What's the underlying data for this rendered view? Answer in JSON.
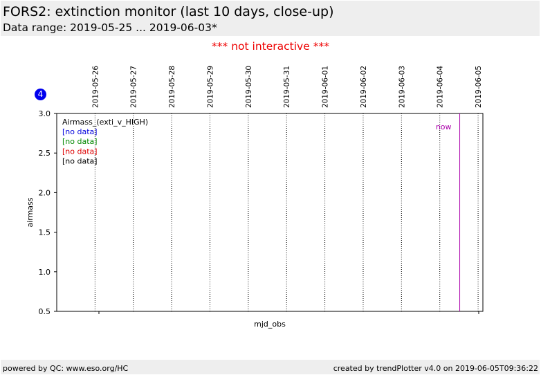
{
  "header": {
    "title": "FORS2: extinction monitor (last 10 days, close-up)",
    "subtitle": "Data range: 2019-05-25 ... 2019-06-03*"
  },
  "notice": "*** not interactive ***",
  "badge": "4",
  "footer": {
    "left": "powered by QC: www.eso.org/HC",
    "right": "created by trendPlotter v4.0 on 2019-06-05T09:36:22"
  },
  "chart_data": {
    "type": "line",
    "xlabel": "mjd_obs",
    "ylabel": "airmass",
    "ylim": [
      0.5,
      3.0
    ],
    "xlim": [
      "2019-05-25T00:00",
      "2019-06-05T03:00"
    ],
    "y_ticks": [
      "0.5",
      "1.0",
      "1.5",
      "2.0",
      "2.5",
      "3.0"
    ],
    "x_day_ticks": [
      "2019-05-26",
      "2019-05-27",
      "2019-05-28",
      "2019-05-29",
      "2019-05-30",
      "2019-05-31",
      "2019-06-01",
      "2019-06-02",
      "2019-06-03",
      "2019-06-04",
      "2019-06-05"
    ],
    "now": "2019-06-04T12:30",
    "now_label": "now",
    "now_color": "#aa00aa",
    "legend": {
      "placement": "top-left",
      "title": "Airmass_(exti_v_HIGH)",
      "entries": [
        {
          "text": "[no data]",
          "color": "#0000dd"
        },
        {
          "text": "[no data]",
          "color": "#008800"
        },
        {
          "text": "[no data]",
          "color": "#dd0000"
        },
        {
          "text": "[no data]",
          "color": "#000000"
        }
      ]
    },
    "series": []
  }
}
